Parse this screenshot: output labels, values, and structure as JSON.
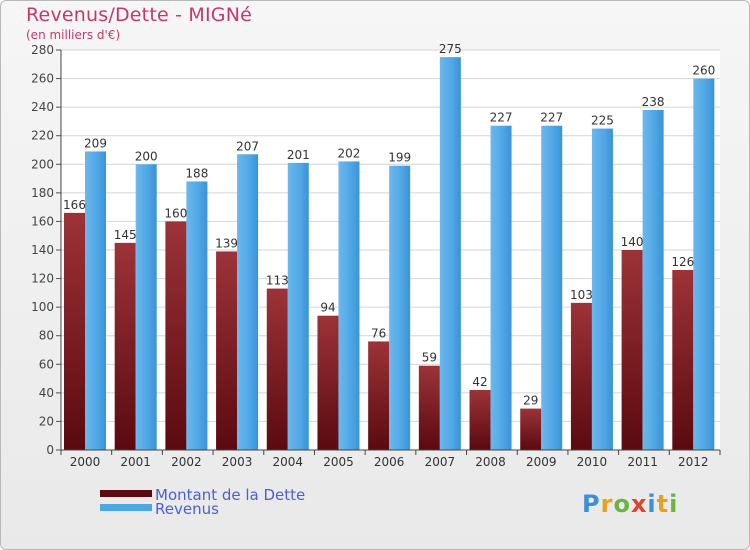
{
  "header": {
    "title": "Revenus/Dette - MIGNé",
    "subtitle": "(en milliers d'€)"
  },
  "logo": {
    "text": "Proxiti"
  },
  "colors": {
    "dette_dark": "#5a0a10",
    "dette_light": "#9c3338",
    "revenus_dark": "#2a7cc4",
    "revenus_light": "#5aaee8",
    "title": "#c43a67",
    "legend_text": "#4a5fd6"
  },
  "chart_data": {
    "type": "bar",
    "title": "Revenus/Dette - MIGNé",
    "subtitle": "(en milliers d'€)",
    "xlabel": "",
    "ylabel": "",
    "ylim": [
      0,
      280
    ],
    "yticks": [
      0,
      20,
      40,
      60,
      80,
      100,
      120,
      140,
      160,
      180,
      200,
      220,
      240,
      260,
      280
    ],
    "grid": true,
    "legend_position": "bottom-left",
    "categories": [
      "2000",
      "2001",
      "2002",
      "2003",
      "2004",
      "2005",
      "2006",
      "2007",
      "2008",
      "2009",
      "2010",
      "2011",
      "2012"
    ],
    "series": [
      {
        "name": "Montant de la Dette",
        "values": [
          166,
          145,
          160,
          139,
          113,
          94,
          76,
          59,
          42,
          29,
          103,
          140,
          126
        ]
      },
      {
        "name": "Revenus",
        "values": [
          209,
          200,
          188,
          207,
          201,
          202,
          199,
          275,
          227,
          227,
          225,
          238,
          260
        ]
      }
    ]
  }
}
